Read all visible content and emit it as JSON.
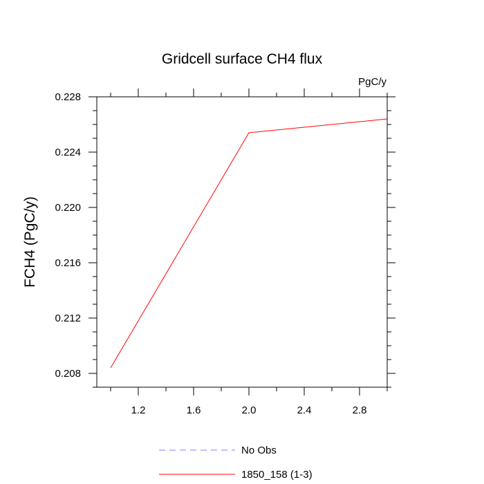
{
  "chart_data": {
    "type": "line",
    "title": "Gridcell surface CH4 flux",
    "units_label": "PgC/y",
    "ylabel": "FCH4  (PgC/y)",
    "xlabel": "",
    "xlim": [
      0.9,
      3.0
    ],
    "ylim": [
      0.207,
      0.228
    ],
    "x_major_ticks": [
      1.2,
      1.6,
      2.0,
      2.4,
      2.8
    ],
    "x_tick_labels": [
      "1.2",
      "1.6",
      "2.0",
      "2.4",
      "2.8"
    ],
    "y_major_ticks": [
      0.208,
      0.212,
      0.216,
      0.22,
      0.224,
      0.228
    ],
    "y_tick_labels": [
      "0.208",
      "0.212",
      "0.216",
      "0.220",
      "0.224",
      "0.228"
    ],
    "grid": false,
    "legend_placement": "bottom-center",
    "series": [
      {
        "name": "No Obs",
        "color": "#8080ff",
        "dash": "dashed",
        "x": [],
        "y": []
      },
      {
        "name": "1850_158 (1-3)",
        "color": "#ff0000",
        "dash": "solid",
        "x": [
          1.0,
          2.0,
          3.0
        ],
        "y": [
          0.2084,
          0.2254,
          0.2264
        ]
      }
    ]
  }
}
